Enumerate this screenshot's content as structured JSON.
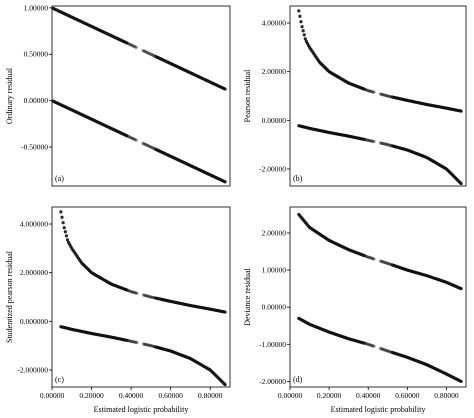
{
  "chart_data": [
    {
      "type": "scatter",
      "panel_label": "(a)",
      "ylabel": "Ordinary residual",
      "xlabel": "",
      "xlim": [
        0.0,
        0.9
      ],
      "ylim": [
        -0.92,
        1.02
      ],
      "x_ticks": [],
      "y_ticks": [
        1.0,
        0.5,
        0.0,
        -0.5
      ],
      "y_tick_labels": [
        "1.00000",
        "0.50000",
        "0.00000",
        "-0.50000"
      ],
      "series": [
        {
          "x": [
            0.005,
            0.1,
            0.2,
            0.3,
            0.4,
            0.5,
            0.6,
            0.7,
            0.8,
            0.875
          ],
          "values": [
            0.995,
            0.9,
            0.8,
            0.7,
            0.6,
            0.5,
            0.4,
            0.3,
            0.2,
            0.125
          ]
        },
        {
          "x": [
            0.005,
            0.1,
            0.2,
            0.3,
            0.4,
            0.5,
            0.6,
            0.7,
            0.8,
            0.875
          ],
          "values": [
            -0.005,
            -0.1,
            -0.2,
            -0.3,
            -0.4,
            -0.5,
            -0.6,
            -0.7,
            -0.8,
            -0.875
          ]
        }
      ]
    },
    {
      "type": "scatter",
      "panel_label": "(b)",
      "ylabel": "Pearson residual",
      "xlabel": "",
      "xlim": [
        0.0,
        0.9
      ],
      "ylim": [
        -2.7,
        4.7
      ],
      "x_ticks": [],
      "y_ticks": [
        4.0,
        2.0,
        0.0,
        -2.0
      ],
      "y_tick_labels": [
        "4.00000",
        "2.00000",
        "0.00000",
        "-2.00000"
      ],
      "series": [
        {
          "x": [
            0.045,
            0.06,
            0.08,
            0.1,
            0.15,
            0.2,
            0.3,
            0.4,
            0.5,
            0.6,
            0.7,
            0.8,
            0.875
          ],
          "values": [
            4.5,
            3.9,
            3.3,
            3.0,
            2.4,
            2.0,
            1.53,
            1.22,
            1.0,
            0.82,
            0.65,
            0.5,
            0.38
          ]
        },
        {
          "x": [
            0.045,
            0.1,
            0.2,
            0.3,
            0.4,
            0.5,
            0.6,
            0.7,
            0.8,
            0.85,
            0.875
          ],
          "values": [
            -0.22,
            -0.33,
            -0.5,
            -0.65,
            -0.82,
            -1.0,
            -1.22,
            -1.53,
            -2.0,
            -2.4,
            -2.6
          ]
        }
      ]
    },
    {
      "type": "scatter",
      "panel_label": "(c)",
      "ylabel": "Studentized pearson residual",
      "xlabel": "Estimated logistic probability",
      "xlim": [
        0.0,
        0.9
      ],
      "ylim": [
        -2.7,
        4.7
      ],
      "x_ticks": [
        0.0,
        0.2,
        0.4,
        0.6,
        0.8
      ],
      "x_tick_labels": [
        "0.00000",
        "0.20000",
        "0.40000",
        "0.60000",
        "0.80000"
      ],
      "y_ticks": [
        4.0,
        2.0,
        0.0,
        -2.0
      ],
      "y_tick_labels": [
        "4.000000",
        "2.000000",
        "0.000000",
        "-2.000000"
      ],
      "series": [
        {
          "x": [
            0.045,
            0.06,
            0.08,
            0.1,
            0.15,
            0.2,
            0.3,
            0.4,
            0.5,
            0.6,
            0.7,
            0.8,
            0.875
          ],
          "values": [
            4.5,
            3.9,
            3.3,
            3.0,
            2.4,
            2.0,
            1.53,
            1.22,
            1.0,
            0.82,
            0.65,
            0.5,
            0.38
          ]
        },
        {
          "x": [
            0.045,
            0.1,
            0.2,
            0.3,
            0.4,
            0.5,
            0.6,
            0.7,
            0.8,
            0.85,
            0.875
          ],
          "values": [
            -0.22,
            -0.33,
            -0.5,
            -0.65,
            -0.82,
            -1.0,
            -1.22,
            -1.53,
            -2.0,
            -2.4,
            -2.6
          ]
        }
      ]
    },
    {
      "type": "scatter",
      "panel_label": "(d)",
      "ylabel": "Deviance residual",
      "xlabel": "Estimated logistic probability",
      "xlim": [
        0.0,
        0.9
      ],
      "ylim": [
        -2.15,
        2.7
      ],
      "x_ticks": [
        0.0,
        0.2,
        0.4,
        0.6,
        0.8
      ],
      "x_tick_labels": [
        "0.00000",
        "0.20000",
        "0.40000",
        "0.60000",
        "0.80000"
      ],
      "y_ticks": [
        2.0,
        1.0,
        0.0,
        -1.0,
        -2.0
      ],
      "y_tick_labels": [
        "2.00000",
        "1.00000",
        "0.00000",
        "-1.00000",
        "-2.00000"
      ],
      "series": [
        {
          "x": [
            0.045,
            0.1,
            0.2,
            0.3,
            0.4,
            0.5,
            0.6,
            0.7,
            0.8,
            0.875
          ],
          "values": [
            2.5,
            2.15,
            1.8,
            1.55,
            1.35,
            1.18,
            1.0,
            0.85,
            0.67,
            0.5
          ]
        },
        {
          "x": [
            0.045,
            0.1,
            0.2,
            0.3,
            0.4,
            0.5,
            0.6,
            0.7,
            0.8,
            0.875
          ],
          "values": [
            -0.3,
            -0.46,
            -0.67,
            -0.85,
            -1.0,
            -1.18,
            -1.35,
            -1.55,
            -1.8,
            -2.0
          ]
        }
      ]
    }
  ]
}
